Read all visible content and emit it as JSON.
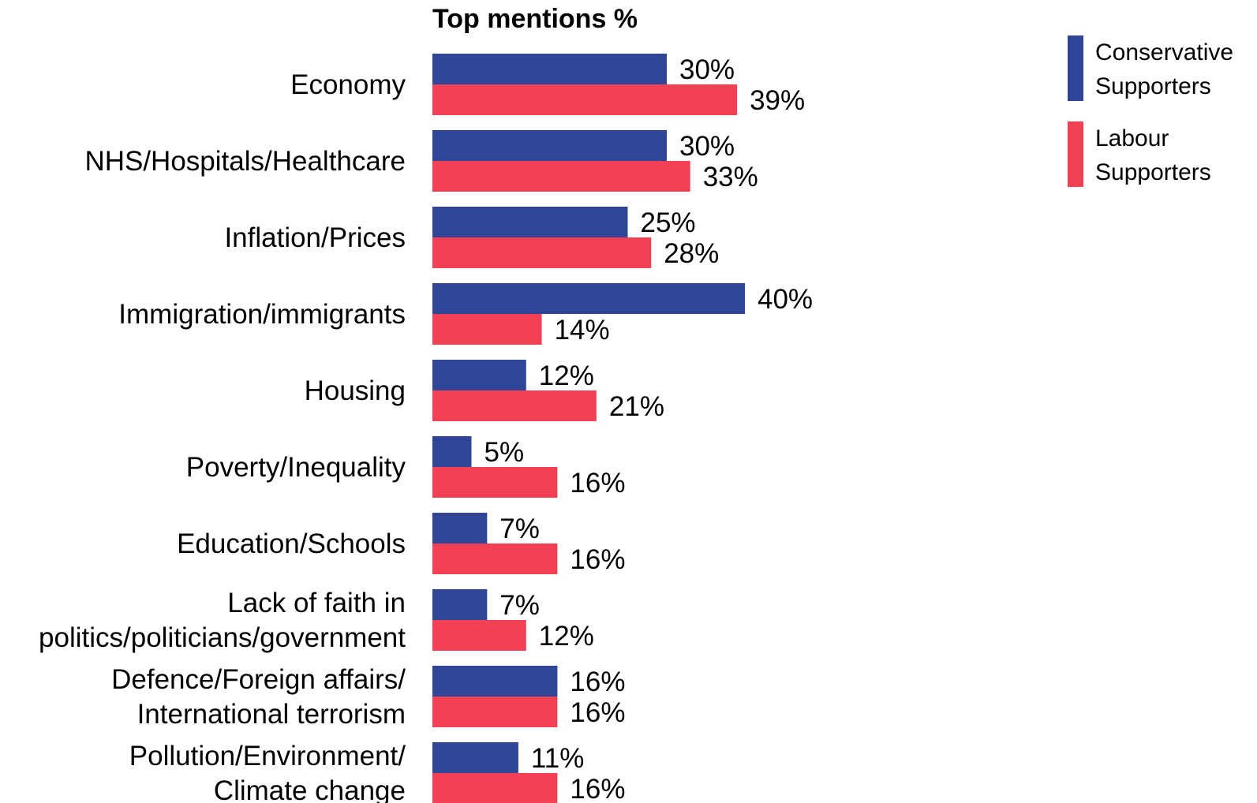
{
  "chart_data": {
    "type": "bar",
    "orientation": "horizontal",
    "title": "Top mentions %",
    "xlim": [
      0,
      40
    ],
    "grid": false,
    "legend_position": "top-right",
    "categories": [
      [
        "Economy"
      ],
      [
        "NHS/Hospitals/Healthcare"
      ],
      [
        "Inflation/Prices"
      ],
      [
        "Immigration/immigrants"
      ],
      [
        "Housing"
      ],
      [
        "Poverty/Inequality"
      ],
      [
        "Education/Schools"
      ],
      [
        "Lack of faith in",
        "politics/politicians/government"
      ],
      [
        "Defence/Foreign affairs/",
        "International terrorism"
      ],
      [
        "Pollution/Environment/",
        "Climate change"
      ]
    ],
    "series": [
      {
        "name": [
          "Conservative",
          "Supporters"
        ],
        "color": "#2e4598",
        "values": [
          30,
          30,
          25,
          40,
          12,
          5,
          7,
          7,
          16,
          11
        ],
        "labels": [
          "30%",
          "30%",
          "25%",
          "40%",
          "12%",
          "5%",
          "7%",
          "7%",
          "16%",
          "11%"
        ]
      },
      {
        "name": [
          "Labour",
          "Supporters"
        ],
        "color": "#f24155",
        "values": [
          39,
          33,
          28,
          14,
          21,
          16,
          16,
          12,
          16,
          16
        ],
        "labels": [
          "39%",
          "33%",
          "28%",
          "14%",
          "21%",
          "16%",
          "16%",
          "12%",
          "16%",
          "16%"
        ]
      }
    ]
  }
}
